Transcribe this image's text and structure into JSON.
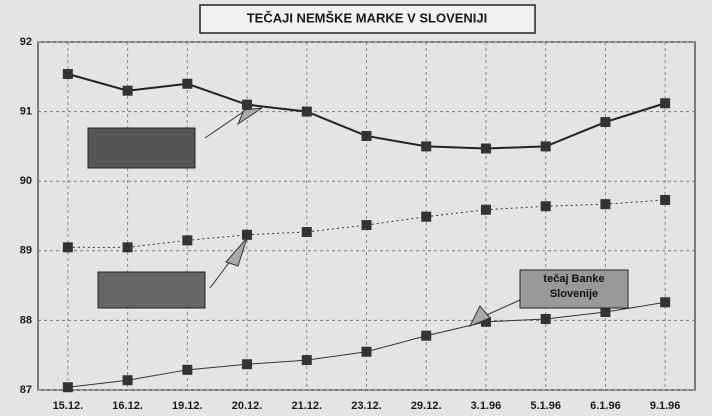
{
  "chart_data": {
    "type": "line",
    "title": "TEČAJI NEMŠKE MARKE V SLOVENIJI",
    "categories": [
      "15.12.",
      "16.12.",
      "19.12.",
      "20.12.",
      "21.12.",
      "23.12.",
      "29.12.",
      "3.1.96",
      "5.1.96",
      "6.1.96",
      "9.1.96"
    ],
    "series": [
      {
        "color": "#222222",
        "style": "solid-thick",
        "values": [
          91.54,
          91.3,
          91.4,
          91.1,
          91.0,
          90.65,
          90.5,
          90.47,
          90.5,
          90.85,
          91.12
        ]
      },
      {
        "color": "#333333",
        "style": "dotted",
        "values": [
          89.05,
          89.05,
          89.15,
          89.23,
          89.27,
          89.37,
          89.49,
          89.59,
          89.64,
          89.67,
          89.73
        ]
      },
      {
        "color": "#333333",
        "style": "solid-thin",
        "values": [
          87.04,
          87.14,
          87.29,
          87.37,
          87.43,
          87.55,
          87.78,
          87.98,
          88.02,
          88.12,
          88.26
        ]
      }
    ],
    "annotation": "tečaj Banke Slovenije",
    "ylim": [
      87,
      92
    ],
    "yticks": [
      87,
      88,
      89,
      90,
      91,
      92
    ],
    "grid": true
  }
}
